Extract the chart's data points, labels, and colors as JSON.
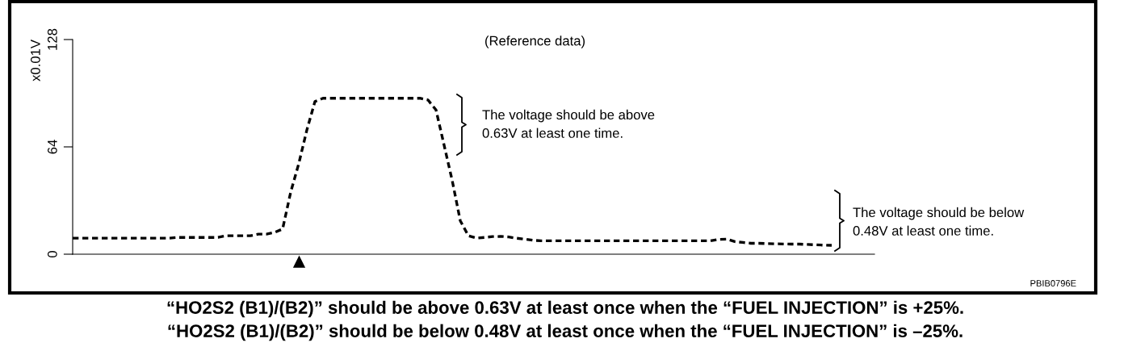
{
  "chart_data": {
    "type": "line",
    "ylabel": "x0.01V",
    "ylim": [
      0,
      128
    ],
    "yticks": [
      0,
      64,
      128
    ],
    "grid": false,
    "legend": false,
    "marker": "none",
    "line_style": "dashed",
    "categories": [
      null,
      null,
      null,
      null,
      null,
      null,
      null,
      null,
      null,
      null,
      null,
      null,
      null,
      null,
      null,
      null,
      null,
      null,
      null,
      null,
      null,
      null,
      null,
      null,
      null,
      null,
      null,
      null,
      null,
      null,
      null,
      null,
      null,
      null,
      null,
      null,
      null,
      null,
      null,
      null,
      null,
      null,
      null,
      null,
      null,
      null,
      null,
      null,
      null,
      null,
      null,
      null,
      null,
      null,
      null,
      null,
      null,
      null,
      null,
      null,
      null,
      null,
      null,
      null,
      null,
      null,
      null,
      null,
      null,
      null,
      null,
      null,
      null,
      null,
      null,
      null,
      null,
      null,
      null,
      null,
      null,
      null,
      null,
      null,
      null,
      null,
      null,
      null,
      null,
      null,
      null,
      null,
      null,
      null,
      null
    ],
    "series": [
      {
        "color": "#000000",
        "values": [
          9.6,
          9.6,
          9.6,
          9.6,
          9.6,
          9.6,
          9.6,
          9.6,
          9.6,
          9.6,
          9.6,
          9.6,
          9.6,
          10,
          10,
          10,
          10,
          10,
          10,
          11,
          11,
          11,
          11,
          12,
          12,
          13,
          15,
          37,
          54,
          74,
          91,
          93,
          93,
          93,
          93,
          93,
          93,
          93,
          93,
          93,
          93,
          93,
          93,
          93,
          92,
          86,
          65,
          44,
          20,
          11,
          9.6,
          10,
          10.5,
          10.6,
          10.3,
          9.5,
          9,
          8.3,
          8,
          8,
          8,
          8,
          8,
          8,
          8,
          8,
          8,
          8,
          8,
          8,
          8,
          8,
          8,
          8,
          8,
          8,
          8,
          8,
          8,
          8,
          8.8,
          9,
          7.5,
          7,
          6.5,
          6.5,
          6.3,
          6.2,
          6.1,
          6,
          6,
          5.8,
          5.6,
          5.4,
          5.3
        ]
      }
    ],
    "annotations": [
      "(Reference data)",
      "The voltage should be above\n0.63V at least one time.",
      "The voltage should be below\n0.48V at least one time.",
      "PBIB0796E",
      "“HO2S2 (B1)/(B2)” should be above 0.63V at least once when the “FUEL INJECTION” is +25%.",
      "“HO2S2 (B1)/(B2)” should be below 0.48V at least once when the “FUEL INJECTION” is –25%."
    ]
  }
}
